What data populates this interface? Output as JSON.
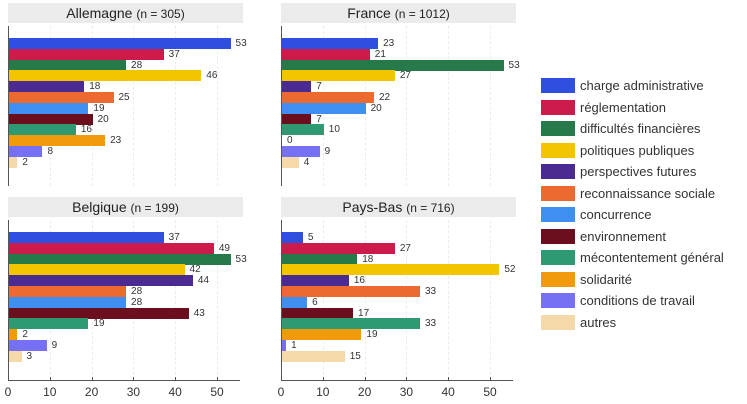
{
  "chart_data": {
    "type": "bar",
    "orientation": "horizontal",
    "layout": "2x2 facets",
    "xlim": [
      0,
      55
    ],
    "xticks": [
      0,
      10,
      20,
      30,
      40,
      50
    ],
    "legend_position": "right",
    "grid": true,
    "categories": [
      "charge administrative",
      "réglementation",
      "difficultés financières",
      "politiques publiques",
      "perspectives futures",
      "reconnaissance sociale",
      "concurrence",
      "environnement",
      "mécontentement général",
      "solidarité",
      "conditions de travail",
      "autres"
    ],
    "colors": [
      "#2f4fe0",
      "#cc1a4a",
      "#267a4a",
      "#f2c500",
      "#4b2a91",
      "#ec6a2f",
      "#3f8ef2",
      "#6b0f1f",
      "#2e9a72",
      "#f09a0c",
      "#7670f5",
      "#f6d9a8"
    ],
    "panels": [
      {
        "country": "Allemagne",
        "n_label": "(n = 305)",
        "values": [
          53,
          37,
          28,
          46,
          18,
          25,
          19,
          20,
          16,
          23,
          8,
          2
        ]
      },
      {
        "country": "France",
        "n_label": "(n = 1012)",
        "values": [
          23,
          21,
          53,
          27,
          7,
          22,
          20,
          7,
          10,
          0,
          9,
          4
        ]
      },
      {
        "country": "Belgique",
        "n_label": "(n = 199)",
        "values": [
          37,
          49,
          53,
          42,
          44,
          28,
          28,
          43,
          19,
          2,
          9,
          3
        ]
      },
      {
        "country": "Pays-Bas",
        "n_label": "(n = 716)",
        "values": [
          5,
          27,
          18,
          52,
          16,
          33,
          6,
          17,
          33,
          19,
          1,
          15
        ]
      }
    ]
  },
  "panels": [
    {
      "title": "Allemagne",
      "n": "(n = 305)"
    },
    {
      "title": "France",
      "n": "(n = 1012)"
    },
    {
      "title": "Belgique",
      "n": "(n = 199)"
    },
    {
      "title": "Pays-Bas",
      "n": "(n = 716)"
    }
  ],
  "axis": {
    "ticks": [
      "0",
      "10",
      "20",
      "30",
      "40",
      "50"
    ]
  },
  "legend": {
    "items": [
      {
        "label": "charge administrative",
        "color": "#2f4fe0"
      },
      {
        "label": "réglementation",
        "color": "#cc1a4a"
      },
      {
        "label": "difficultés financières",
        "color": "#267a4a"
      },
      {
        "label": "politiques publiques",
        "color": "#f2c500"
      },
      {
        "label": "perspectives futures",
        "color": "#4b2a91"
      },
      {
        "label": "reconnaissance sociale",
        "color": "#ec6a2f"
      },
      {
        "label": "concurrence",
        "color": "#3f8ef2"
      },
      {
        "label": "environnement",
        "color": "#6b0f1f"
      },
      {
        "label": "mécontentement général",
        "color": "#2e9a72"
      },
      {
        "label": "solidarité",
        "color": "#f09a0c"
      },
      {
        "label": "conditions de travail",
        "color": "#7670f5"
      },
      {
        "label": "autres",
        "color": "#f6d9a8"
      }
    ]
  }
}
